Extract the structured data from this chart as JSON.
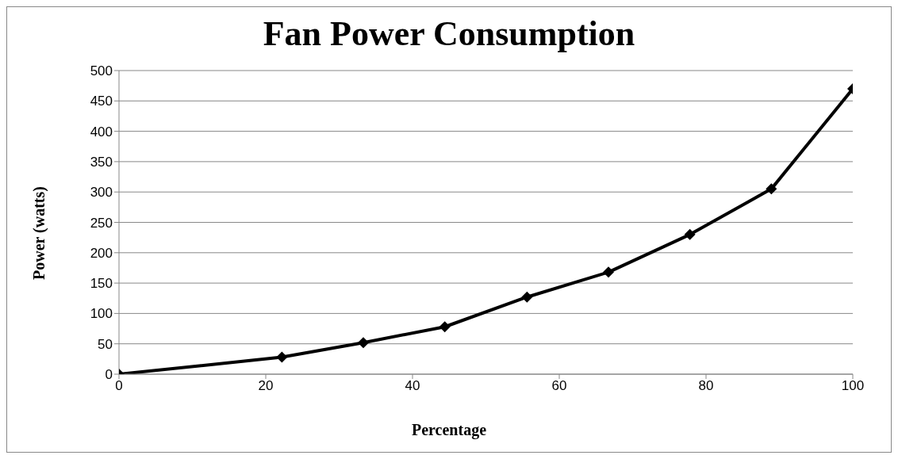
{
  "chart_data": {
    "type": "line",
    "title": "Fan Power Consumption",
    "xlabel": "Percentage",
    "ylabel": "Power (watts)",
    "x": [
      0,
      22.2,
      33.3,
      44.4,
      55.6,
      66.7,
      77.8,
      88.9,
      100
    ],
    "series": [
      {
        "color": "#000000",
        "values": [
          0,
          28,
          52,
          78,
          127,
          168,
          230,
          305,
          470
        ]
      }
    ],
    "xlim": [
      0,
      100
    ],
    "xticks": [
      0,
      20,
      40,
      60,
      80,
      100
    ],
    "ylim": [
      0,
      500
    ],
    "yticks": [
      0,
      50,
      100,
      150,
      200,
      250,
      300,
      350,
      400,
      450,
      500
    ],
    "grid": "y",
    "legend": false,
    "marker": "diamond",
    "line_style": "solid"
  }
}
